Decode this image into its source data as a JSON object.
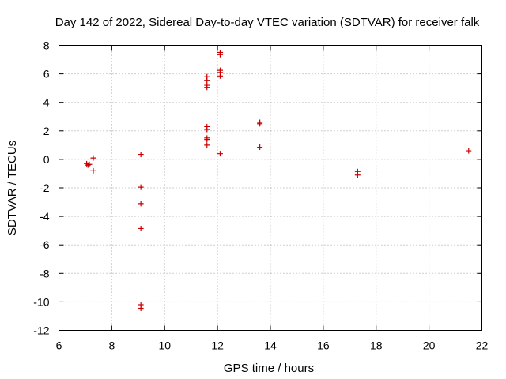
{
  "chart_data": {
    "type": "scatter",
    "title": "Day 142 of 2022, Sidereal Day-to-day VTEC variation (SDTVAR) for receiver falk",
    "xlabel": "GPS time / hours",
    "ylabel": "SDTVAR / TECUs",
    "xlim": [
      6,
      22
    ],
    "ylim": [
      -12,
      8
    ],
    "x_ticks": [
      6,
      8,
      10,
      12,
      14,
      16,
      18,
      20,
      22
    ],
    "y_ticks": [
      -12,
      -10,
      -8,
      -6,
      -4,
      -2,
      0,
      2,
      4,
      6,
      8
    ],
    "grid": true,
    "marker": "plus",
    "series_color": "#cc0000",
    "points": [
      {
        "x": 7.05,
        "y": -0.3
      },
      {
        "x": 7.1,
        "y": -0.4
      },
      {
        "x": 7.15,
        "y": -0.35
      },
      {
        "x": 7.3,
        "y": 0.1
      },
      {
        "x": 7.3,
        "y": -0.8
      },
      {
        "x": 9.1,
        "y": 0.35
      },
      {
        "x": 9.1,
        "y": -1.95
      },
      {
        "x": 9.1,
        "y": -3.1
      },
      {
        "x": 9.1,
        "y": -4.85
      },
      {
        "x": 9.1,
        "y": -10.2
      },
      {
        "x": 9.1,
        "y": -10.45
      },
      {
        "x": 11.6,
        "y": 5.8
      },
      {
        "x": 11.6,
        "y": 5.55
      },
      {
        "x": 11.6,
        "y": 5.2
      },
      {
        "x": 11.6,
        "y": 5.05
      },
      {
        "x": 11.6,
        "y": 2.3
      },
      {
        "x": 11.6,
        "y": 2.1
      },
      {
        "x": 11.6,
        "y": 1.5
      },
      {
        "x": 11.6,
        "y": 1.4
      },
      {
        "x": 11.6,
        "y": 1.0
      },
      {
        "x": 12.1,
        "y": 7.5
      },
      {
        "x": 12.1,
        "y": 7.35
      },
      {
        "x": 12.1,
        "y": 6.25
      },
      {
        "x": 12.1,
        "y": 6.1
      },
      {
        "x": 12.1,
        "y": 5.85
      },
      {
        "x": 12.1,
        "y": 0.4
      },
      {
        "x": 13.6,
        "y": 2.6
      },
      {
        "x": 13.6,
        "y": 2.5
      },
      {
        "x": 13.6,
        "y": 0.85
      },
      {
        "x": 17.3,
        "y": -0.85
      },
      {
        "x": 17.3,
        "y": -1.1
      },
      {
        "x": 21.5,
        "y": 0.6
      }
    ]
  }
}
